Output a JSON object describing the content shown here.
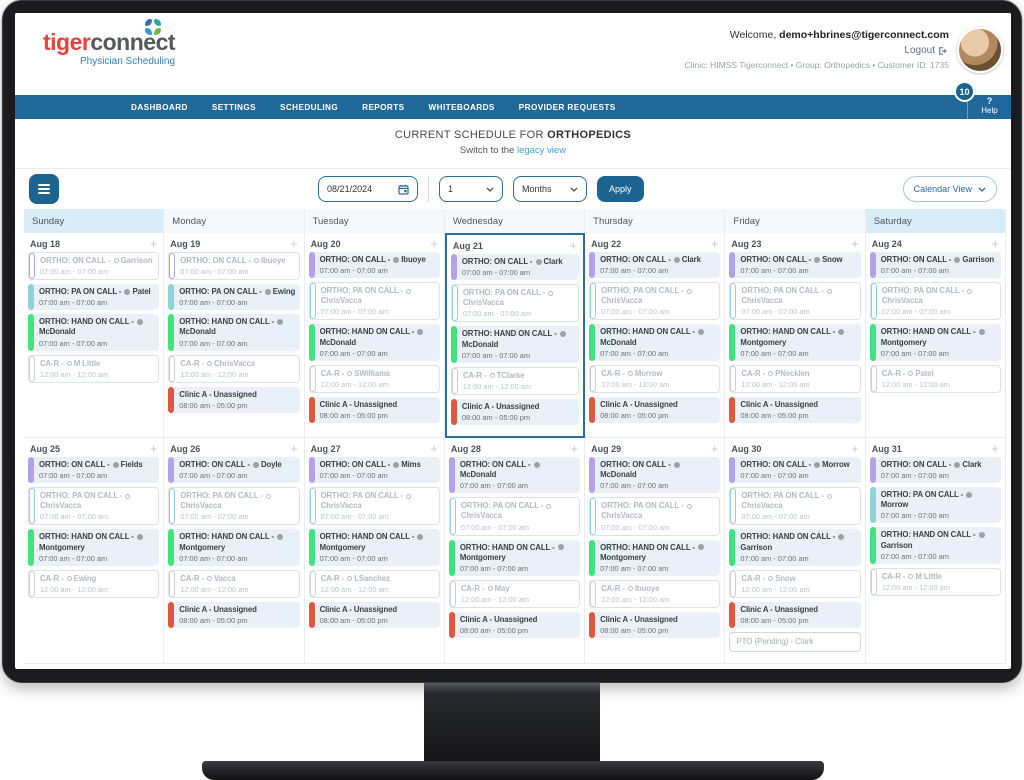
{
  "header": {
    "logo_tiger": "tiger",
    "logo_connect": "connect",
    "logo_subtitle": "Physician Scheduling",
    "welcome_prefix": "Welcome, ",
    "user_email": "demo+hbrines@tigerconnect.com",
    "logout_label": "Logout",
    "clinic_info": "Clinic: HIMSS Tigerconnect • Group: Orthopedics • Customer ID: 1735",
    "notification_count": "10",
    "help_q": "?",
    "help_label": "Help"
  },
  "nav": {
    "items": [
      "DASHBOARD",
      "SETTINGS",
      "SCHEDULING",
      "REPORTS",
      "WHITEBOARDS",
      "PROVIDER REQUESTS"
    ]
  },
  "title": {
    "prefix": "CURRENT SCHEDULE FOR ",
    "group": "ORTHOPEDICS",
    "switch_prefix": "Switch to the ",
    "switch_link": "legacy view"
  },
  "controls": {
    "date_value": "08/21/2024",
    "interval_value": "1",
    "unit_value": "Months",
    "apply_label": "Apply",
    "view_value": "Calendar View"
  },
  "colors": {
    "nav_bg": "#20689a",
    "button_blue": "#1d6390",
    "link_blue": "#3ea2e0",
    "selected_cell_border": "#2a6d9e",
    "bars": {
      "oncall": "#b4a2ef",
      "pa": "#8fd2da",
      "hand": "#3fe47d",
      "car": "#c9cfd5",
      "clinic": "#dd5a41"
    }
  },
  "calendar": {
    "day_headers": [
      {
        "label": "Sunday",
        "weekend": true
      },
      {
        "label": "Monday",
        "weekend": false
      },
      {
        "label": "Tuesday",
        "weekend": false
      },
      {
        "label": "Wednesday",
        "weekend": false
      },
      {
        "label": "Thursday",
        "weekend": false
      },
      {
        "label": "Friday",
        "weekend": false
      },
      {
        "label": "Saturday",
        "weekend": true
      }
    ],
    "weeks": [
      [
        {
          "date": "Aug 18",
          "selected": false,
          "events": [
            {
              "type": "oncall",
              "state": "inactive",
              "title": "ORTHO: ON CALL - ",
              "dot": "outline",
              "assignee": "Garrison",
              "time": "07:00 am - 07:00 am"
            },
            {
              "type": "pa",
              "state": "active",
              "title": "ORTHO: PA ON CALL - ",
              "dot": "filled",
              "assignee": "Patel",
              "time": "07:00 am - 07:00 am"
            },
            {
              "type": "hand",
              "state": "active",
              "title": "ORTHO: HAND ON CALL - ",
              "dot": "filled",
              "assignee": "McDonald",
              "time": "07:00 am - 07:00 am"
            },
            {
              "type": "car",
              "state": "inactive",
              "title": "CA-R - ",
              "dot": "outline",
              "assignee": "M Little",
              "time": "12:00 am - 12:00 am"
            }
          ]
        },
        {
          "date": "Aug 19",
          "selected": false,
          "events": [
            {
              "type": "oncall",
              "state": "inactive",
              "title": "ORTHO: ON CALL - ",
              "dot": "outline",
              "assignee": "Ibuoye",
              "time": "07:00 am - 07:00 am"
            },
            {
              "type": "pa",
              "state": "active",
              "title": "ORTHO: PA ON CALL - ",
              "dot": "filled",
              "assignee": "Ewing",
              "time": "07:00 am - 07:00 am"
            },
            {
              "type": "hand",
              "state": "active",
              "title": "ORTHO: HAND ON CALL - ",
              "dot": "filled",
              "assignee": "McDonald",
              "time": "07:00 am - 07:00 am"
            },
            {
              "type": "car",
              "state": "inactive",
              "title": "CA-R - ",
              "dot": "outline",
              "assignee": "ChrisVacca",
              "time": "12:00 am - 12:00 am"
            },
            {
              "type": "clinic",
              "state": "active",
              "title": "Clinic A - Unassigned",
              "time": "08:00 am - 05:00 pm"
            }
          ]
        },
        {
          "date": "Aug 20",
          "selected": false,
          "events": [
            {
              "type": "oncall",
              "state": "active",
              "title": "ORTHO: ON CALL - ",
              "dot": "filled",
              "assignee": "Ibuoye",
              "time": "07:00 am - 07:00 am"
            },
            {
              "type": "pa",
              "state": "inactive",
              "title": "ORTHO: PA ON CALL - ",
              "dot": "outline",
              "assignee": "ChrisVacca",
              "time": "07:00 am - 07:00 am"
            },
            {
              "type": "hand",
              "state": "active",
              "title": "ORTHO: HAND ON CALL - ",
              "dot": "filled",
              "assignee": "McDonald",
              "time": "07:00 am - 07:00 am"
            },
            {
              "type": "car",
              "state": "inactive",
              "title": "CA-R - ",
              "dot": "outline",
              "assignee": "SWilliams",
              "time": "12:00 am - 12:00 am"
            },
            {
              "type": "clinic",
              "state": "active",
              "title": "Clinic A - Unassigned",
              "time": "08:00 am - 05:00 pm"
            }
          ]
        },
        {
          "date": "Aug 21",
          "selected": true,
          "events": [
            {
              "type": "oncall",
              "state": "active",
              "title": "ORTHO: ON CALL - ",
              "dot": "filled",
              "assignee": "Clark",
              "time": "07:00 am - 07:00 am"
            },
            {
              "type": "pa",
              "state": "inactive",
              "title": "ORTHO: PA ON CALL - ",
              "dot": "outline",
              "assignee": "ChrisVacca",
              "time": "07:00 am - 07:00 am"
            },
            {
              "type": "hand",
              "state": "active",
              "title": "ORTHO: HAND ON CALL - ",
              "dot": "filled",
              "assignee": "McDonald",
              "time": "07:00 am - 07:00 am"
            },
            {
              "type": "car",
              "state": "inactive",
              "title": "CA-R - ",
              "dot": "outline",
              "assignee": "TClarke",
              "time": "12:00 am - 12:00 am"
            },
            {
              "type": "clinic",
              "state": "active",
              "title": "Clinic A - Unassigned",
              "time": "08:00 am - 05:00 pm"
            }
          ]
        },
        {
          "date": "Aug 22",
          "selected": false,
          "events": [
            {
              "type": "oncall",
              "state": "active",
              "title": "ORTHO: ON CALL - ",
              "dot": "filled",
              "assignee": "Clark",
              "time": "07:00 am - 07:00 am"
            },
            {
              "type": "pa",
              "state": "inactive",
              "title": "ORTHO: PA ON CALL - ",
              "dot": "outline",
              "assignee": "ChrisVacca",
              "time": "07:00 am - 07:00 am"
            },
            {
              "type": "hand",
              "state": "active",
              "title": "ORTHO: HAND ON CALL - ",
              "dot": "filled",
              "assignee": "McDonald",
              "time": "07:00 am - 07:00 am"
            },
            {
              "type": "car",
              "state": "inactive",
              "title": "CA-R - ",
              "dot": "outline",
              "assignee": "Morrow",
              "time": "12:00 am - 12:00 am"
            },
            {
              "type": "clinic",
              "state": "active",
              "title": "Clinic A - Unassigned",
              "time": "08:00 am - 05:00 pm"
            }
          ]
        },
        {
          "date": "Aug 23",
          "selected": false,
          "events": [
            {
              "type": "oncall",
              "state": "active",
              "title": "ORTHO: ON CALL - ",
              "dot": "filled",
              "assignee": "Snow",
              "time": "07:00 am - 07:00 am"
            },
            {
              "type": "pa",
              "state": "inactive",
              "title": "ORTHO: PA ON CALL - ",
              "dot": "outline",
              "assignee": "ChrisVacca",
              "time": "07:00 am - 07:00 am"
            },
            {
              "type": "hand",
              "state": "active",
              "title": "ORTHO: HAND ON CALL - ",
              "dot": "filled",
              "assignee": "Montgomery",
              "time": "07:00 am - 07:00 am"
            },
            {
              "type": "car",
              "state": "inactive",
              "title": "CA-R - ",
              "dot": "outline",
              "assignee": "PNecklen",
              "time": "12:00 am - 12:00 am"
            },
            {
              "type": "clinic",
              "state": "active",
              "title": "Clinic A - Unassigned",
              "time": "08:00 am - 05:00 pm"
            }
          ]
        },
        {
          "date": "Aug 24",
          "selected": false,
          "events": [
            {
              "type": "oncall",
              "state": "active",
              "title": "ORTHO: ON CALL - ",
              "dot": "filled",
              "assignee": "Garrison",
              "time": "07:00 am - 07:00 am"
            },
            {
              "type": "pa",
              "state": "inactive",
              "title": "ORTHO: PA ON CALL - ",
              "dot": "outline",
              "assignee": "ChrisVacca",
              "time": "07:00 am - 07:00 am"
            },
            {
              "type": "hand",
              "state": "active",
              "title": "ORTHO: HAND ON CALL - ",
              "dot": "filled",
              "assignee": "Montgomery",
              "time": "07:00 am - 07:00 am"
            },
            {
              "type": "car",
              "state": "inactive",
              "title": "CA-R - ",
              "dot": "outline",
              "assignee": "Patel",
              "time": "12:00 am - 12:00 am"
            }
          ]
        }
      ],
      [
        {
          "date": "Aug 25",
          "selected": false,
          "events": [
            {
              "type": "oncall",
              "state": "active",
              "title": "ORTHO: ON CALL - ",
              "dot": "filled",
              "assignee": "Fields",
              "time": "07:00 am - 07:00 am"
            },
            {
              "type": "pa",
              "state": "inactive",
              "title": "ORTHO: PA ON CALL - ",
              "dot": "outline",
              "assignee": "ChrisVacca",
              "time": "07:00 am - 07:00 am"
            },
            {
              "type": "hand",
              "state": "active",
              "title": "ORTHO: HAND ON CALL - ",
              "dot": "filled",
              "assignee": "Montgomery",
              "time": "07:00 am - 07:00 am"
            },
            {
              "type": "car",
              "state": "inactive",
              "title": "CA-R - ",
              "dot": "outline",
              "assignee": "Ewing",
              "time": "12:00 am - 12:00 am"
            }
          ]
        },
        {
          "date": "Aug 26",
          "selected": false,
          "events": [
            {
              "type": "oncall",
              "state": "active",
              "title": "ORTHO: ON CALL - ",
              "dot": "filled",
              "assignee": "Doyle",
              "time": "07:00 am - 07:00 am"
            },
            {
              "type": "pa",
              "state": "inactive",
              "title": "ORTHO: PA ON CALL - ",
              "dot": "outline",
              "assignee": "ChrisVacca",
              "time": "07:00 am - 07:00 am"
            },
            {
              "type": "hand",
              "state": "active",
              "title": "ORTHO: HAND ON CALL - ",
              "dot": "filled",
              "assignee": "Montgomery",
              "time": "07:00 am - 07:00 am"
            },
            {
              "type": "car",
              "state": "inactive",
              "title": "CA-R - ",
              "dot": "outline",
              "assignee": "Vacca",
              "time": "12:00 am - 12:00 am"
            },
            {
              "type": "clinic",
              "state": "active",
              "title": "Clinic A - Unassigned",
              "time": "08:00 am - 05:00 pm"
            }
          ]
        },
        {
          "date": "Aug 27",
          "selected": false,
          "events": [
            {
              "type": "oncall",
              "state": "active",
              "title": "ORTHO: ON CALL - ",
              "dot": "filled",
              "assignee": "Mims",
              "time": "07:00 am - 07:00 am"
            },
            {
              "type": "pa",
              "state": "inactive",
              "title": "ORTHO: PA ON CALL - ",
              "dot": "outline",
              "assignee": "ChrisVacca",
              "time": "07:00 am - 07:00 am"
            },
            {
              "type": "hand",
              "state": "active",
              "title": "ORTHO: HAND ON CALL - ",
              "dot": "filled",
              "assignee": "Montgomery",
              "time": "07:00 am - 07:00 am"
            },
            {
              "type": "car",
              "state": "inactive",
              "title": "CA-R - ",
              "dot": "outline",
              "assignee": "LSanchez",
              "time": "12:00 am - 12:00 am"
            },
            {
              "type": "clinic",
              "state": "active",
              "title": "Clinic A - Unassigned",
              "time": "08:00 am - 05:00 pm"
            }
          ]
        },
        {
          "date": "Aug 28",
          "selected": false,
          "events": [
            {
              "type": "oncall",
              "state": "active",
              "title": "ORTHO: ON CALL - ",
              "dot": "filled",
              "assignee": "McDonald",
              "time": "07:00 am - 07:00 am"
            },
            {
              "type": "pa",
              "state": "inactive",
              "title": "ORTHO: PA ON CALL - ",
              "dot": "outline",
              "assignee": "ChrisVacca",
              "time": "07:00 am - 07:00 am"
            },
            {
              "type": "hand",
              "state": "active",
              "title": "ORTHO: HAND ON CALL - ",
              "dot": "filled",
              "assignee": "Montgomery",
              "time": "07:00 am - 07:00 am"
            },
            {
              "type": "car",
              "state": "inactive",
              "title": "CA-R - ",
              "dot": "outline",
              "assignee": "May",
              "time": "12:00 am - 12:00 am"
            },
            {
              "type": "clinic",
              "state": "active",
              "title": "Clinic A - Unassigned",
              "time": "08:00 am - 05:00 pm"
            }
          ]
        },
        {
          "date": "Aug 29",
          "selected": false,
          "events": [
            {
              "type": "oncall",
              "state": "active",
              "title": "ORTHO: ON CALL - ",
              "dot": "filled",
              "assignee": "McDonald",
              "time": "07:00 am - 07:00 am"
            },
            {
              "type": "pa",
              "state": "inactive",
              "title": "ORTHO: PA ON CALL - ",
              "dot": "outline",
              "assignee": "ChrisVacca",
              "time": "07:00 am - 07:00 am"
            },
            {
              "type": "hand",
              "state": "active",
              "title": "ORTHO: HAND ON CALL - ",
              "dot": "filled",
              "assignee": "Montgomery",
              "time": "07:00 am - 07:00 am"
            },
            {
              "type": "car",
              "state": "inactive",
              "title": "CA-R - ",
              "dot": "outline",
              "assignee": "Ibuoye",
              "time": "12:00 am - 12:00 am"
            },
            {
              "type": "clinic",
              "state": "active",
              "title": "Clinic A - Unassigned",
              "time": "08:00 am - 05:00 pm"
            }
          ]
        },
        {
          "date": "Aug 30",
          "selected": false,
          "events": [
            {
              "type": "oncall",
              "state": "active",
              "title": "ORTHO: ON CALL - ",
              "dot": "filled",
              "assignee": "Morrow",
              "time": "07:00 am - 07:00 am"
            },
            {
              "type": "pa",
              "state": "inactive",
              "title": "ORTHO: PA ON CALL - ",
              "dot": "outline",
              "assignee": "ChrisVacca",
              "time": "07:00 am - 07:00 am"
            },
            {
              "type": "hand",
              "state": "active",
              "title": "ORTHO: HAND ON CALL - ",
              "dot": "filled",
              "assignee": "Garrison",
              "time": "07:00 am - 07:00 am"
            },
            {
              "type": "car",
              "state": "inactive",
              "title": "CA-R - ",
              "dot": "outline",
              "assignee": "Snow",
              "time": "12:00 am - 12:00 am"
            },
            {
              "type": "clinic",
              "state": "active",
              "title": "Clinic A - Unassigned",
              "time": "08:00 am - 05:00 pm"
            },
            {
              "type": "pto",
              "state": "inactive",
              "title": "PTO (Pending) - Clark"
            }
          ]
        },
        {
          "date": "Aug 31",
          "selected": false,
          "events": [
            {
              "type": "oncall",
              "state": "active",
              "title": "ORTHO: ON CALL - ",
              "dot": "filled",
              "assignee": "Clark",
              "time": "07:00 am - 07:00 am"
            },
            {
              "type": "pa",
              "state": "active",
              "title": "ORTHO: PA ON CALL - ",
              "dot": "filled",
              "assignee": "Morrow",
              "time": "07:00 am - 07:00 am"
            },
            {
              "type": "hand",
              "state": "active",
              "title": "ORTHO: HAND ON CALL - ",
              "dot": "filled",
              "assignee": "Garrison",
              "time": "07:00 am - 07:00 am"
            },
            {
              "type": "car",
              "state": "inactive",
              "title": "CA-R - ",
              "dot": "outline",
              "assignee": "M Little",
              "time": "12:00 am - 12:00 am"
            }
          ]
        }
      ]
    ]
  }
}
